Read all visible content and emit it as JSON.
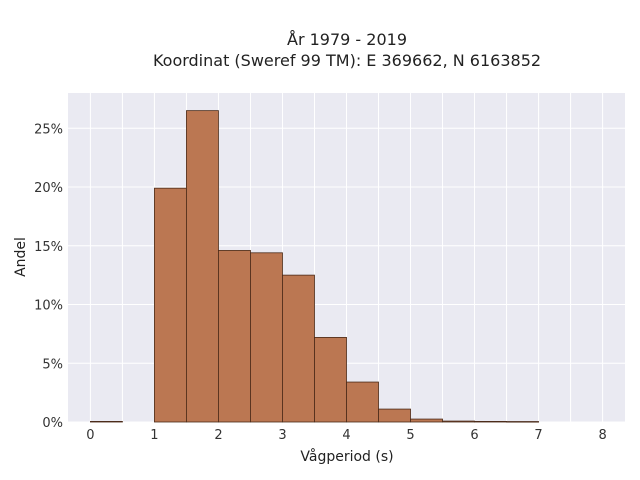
{
  "chart_data": {
    "type": "bar",
    "title_line1": "År 1979 - 2019",
    "title_line2": "Koordinat (Sweref 99 TM): E 369662, N 6163852",
    "xlabel": "Vågperiod (s)",
    "ylabel": "Andel",
    "xlim": [
      -0.35,
      8.35
    ],
    "ylim": [
      0,
      0.28
    ],
    "x_ticks": [
      0,
      1,
      2,
      3,
      4,
      5,
      6,
      7,
      8
    ],
    "y_ticks": [
      0,
      0.05,
      0.1,
      0.15,
      0.2,
      0.25
    ],
    "y_tick_labels": [
      "0%",
      "5%",
      "10%",
      "15%",
      "20%",
      "25%"
    ],
    "bin_width": 0.5,
    "bins": [
      {
        "x0": 0.0,
        "value": 0.0005
      },
      {
        "x0": 0.5,
        "value": 0.0
      },
      {
        "x0": 1.0,
        "value": 0.199
      },
      {
        "x0": 1.5,
        "value": 0.265
      },
      {
        "x0": 2.0,
        "value": 0.146
      },
      {
        "x0": 2.5,
        "value": 0.144
      },
      {
        "x0": 3.0,
        "value": 0.125
      },
      {
        "x0": 3.5,
        "value": 0.072
      },
      {
        "x0": 4.0,
        "value": 0.034
      },
      {
        "x0": 4.5,
        "value": 0.011
      },
      {
        "x0": 5.0,
        "value": 0.0025
      },
      {
        "x0": 5.5,
        "value": 0.0008
      },
      {
        "x0": 6.0,
        "value": 0.0005
      },
      {
        "x0": 6.5,
        "value": 0.0004
      }
    ],
    "grid": true,
    "legend": false,
    "colors": {
      "bar": "#bb7752",
      "edge": "#4a2a18",
      "plot_bg": "#eaeaf2"
    }
  }
}
